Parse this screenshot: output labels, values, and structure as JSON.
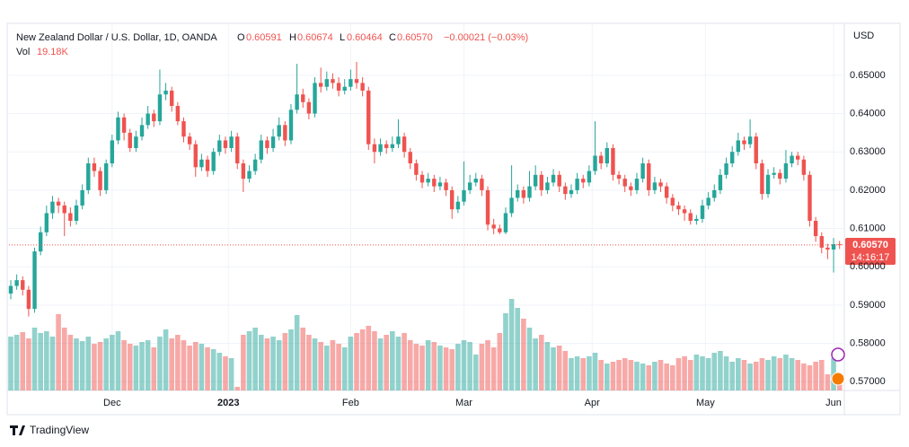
{
  "chart_data": {
    "type": "candlestick",
    "header": {
      "symbol": "New Zealand Dollar / U.S. Dollar, 1D, OANDA",
      "o": "O",
      "open": "0.60591",
      "h": "H",
      "high": "0.60674",
      "l": "L",
      "low": "0.60464",
      "c": "C",
      "close": "0.60570",
      "change": "−0.00021 (−0.03%)",
      "vol": "Vol",
      "volume": "19.18K"
    },
    "currency": "USD",
    "countdown": "14:16:17",
    "brand": "TradingView",
    "up_color": "#26a69a",
    "down_color": "#ef5350",
    "ylim": [
      0.5677,
      0.6631
    ],
    "yticks": [
      {
        "value": 0.57,
        "label": "0.57000"
      },
      {
        "value": 0.58,
        "label": "0.58000"
      },
      {
        "value": 0.59,
        "label": "0.59000"
      },
      {
        "value": 0.6,
        "label": "0.60000"
      },
      {
        "value": 0.61,
        "label": "0.61000"
      },
      {
        "value": 0.62,
        "label": "0.62000"
      },
      {
        "value": 0.63,
        "label": "0.63000"
      },
      {
        "value": 0.64,
        "label": "0.64000"
      },
      {
        "value": 0.65,
        "label": "0.65000"
      }
    ],
    "xlim": [
      -0.3,
      139.8
    ],
    "xticks": [
      {
        "value": 17,
        "label": "Dec"
      },
      {
        "value": 36.5,
        "label": "2023"
      },
      {
        "value": 57,
        "label": "Feb"
      },
      {
        "value": 76,
        "label": "Mar"
      },
      {
        "value": 97.5,
        "label": "Apr"
      },
      {
        "value": 116.5,
        "label": "May"
      },
      {
        "value": 138,
        "label": "Jun"
      }
    ],
    "volume_lim": [
      0,
      110000
    ],
    "candles": [
      [
        0.593,
        0.5965,
        0.5915,
        0.595
      ],
      [
        0.595,
        0.598,
        0.594,
        0.5965
      ],
      [
        0.5965,
        0.5975,
        0.5925,
        0.594
      ],
      [
        0.594,
        0.595,
        0.587,
        0.589
      ],
      [
        0.589,
        0.605,
        0.588,
        0.604
      ],
      [
        0.604,
        0.6105,
        0.603,
        0.609
      ],
      [
        0.609,
        0.616,
        0.608,
        0.614
      ],
      [
        0.614,
        0.6185,
        0.6125,
        0.617
      ],
      [
        0.617,
        0.618,
        0.614,
        0.616
      ],
      [
        0.616,
        0.617,
        0.608,
        0.614
      ],
      [
        0.614,
        0.6155,
        0.6105,
        0.612
      ],
      [
        0.612,
        0.6175,
        0.611,
        0.616
      ],
      [
        0.616,
        0.6215,
        0.615,
        0.62
      ],
      [
        0.62,
        0.6285,
        0.619,
        0.627
      ],
      [
        0.627,
        0.6285,
        0.6235,
        0.625
      ],
      [
        0.625,
        0.626,
        0.6185,
        0.62
      ],
      [
        0.62,
        0.628,
        0.619,
        0.627
      ],
      [
        0.627,
        0.6345,
        0.626,
        0.633
      ],
      [
        0.633,
        0.6405,
        0.632,
        0.639
      ],
      [
        0.639,
        0.64,
        0.633,
        0.635
      ],
      [
        0.635,
        0.636,
        0.63,
        0.631
      ],
      [
        0.631,
        0.6355,
        0.63,
        0.634
      ],
      [
        0.634,
        0.639,
        0.633,
        0.637
      ],
      [
        0.637,
        0.642,
        0.636,
        0.64
      ],
      [
        0.64,
        0.641,
        0.6365,
        0.638
      ],
      [
        0.638,
        0.6515,
        0.637,
        0.645
      ],
      [
        0.645,
        0.648,
        0.6435,
        0.646
      ],
      [
        0.646,
        0.647,
        0.6405,
        0.642
      ],
      [
        0.642,
        0.643,
        0.637,
        0.638
      ],
      [
        0.638,
        0.639,
        0.6325,
        0.634
      ],
      [
        0.634,
        0.635,
        0.6305,
        0.632
      ],
      [
        0.632,
        0.633,
        0.6235,
        0.626
      ],
      [
        0.626,
        0.6295,
        0.625,
        0.628
      ],
      [
        0.628,
        0.629,
        0.6235,
        0.625
      ],
      [
        0.625,
        0.631,
        0.624,
        0.63
      ],
      [
        0.63,
        0.6345,
        0.629,
        0.633
      ],
      [
        0.633,
        0.634,
        0.6295,
        0.631
      ],
      [
        0.631,
        0.6355,
        0.63,
        0.634
      ],
      [
        0.634,
        0.635,
        0.6255,
        0.627
      ],
      [
        0.627,
        0.628,
        0.6195,
        0.623
      ],
      [
        0.623,
        0.6265,
        0.622,
        0.625
      ],
      [
        0.625,
        0.6295,
        0.624,
        0.628
      ],
      [
        0.628,
        0.6345,
        0.627,
        0.633
      ],
      [
        0.633,
        0.634,
        0.6295,
        0.631
      ],
      [
        0.631,
        0.636,
        0.63,
        0.634
      ],
      [
        0.634,
        0.639,
        0.633,
        0.637
      ],
      [
        0.637,
        0.638,
        0.6315,
        0.633
      ],
      [
        0.633,
        0.6425,
        0.632,
        0.641
      ],
      [
        0.641,
        0.653,
        0.64,
        0.645
      ],
      [
        0.645,
        0.6465,
        0.6415,
        0.643
      ],
      [
        0.643,
        0.644,
        0.6385,
        0.64
      ],
      [
        0.64,
        0.6495,
        0.639,
        0.648
      ],
      [
        0.648,
        0.652,
        0.6455,
        0.647
      ],
      [
        0.647,
        0.651,
        0.646,
        0.649
      ],
      [
        0.649,
        0.6505,
        0.6465,
        0.648
      ],
      [
        0.648,
        0.6495,
        0.6445,
        0.646
      ],
      [
        0.646,
        0.649,
        0.645,
        0.647
      ],
      [
        0.647,
        0.6515,
        0.646,
        0.649
      ],
      [
        0.649,
        0.6535,
        0.6465,
        0.648
      ],
      [
        0.648,
        0.6495,
        0.6445,
        0.646
      ],
      [
        0.646,
        0.647,
        0.6305,
        0.632
      ],
      [
        0.632,
        0.6335,
        0.627,
        0.63
      ],
      [
        0.63,
        0.6335,
        0.629,
        0.632
      ],
      [
        0.632,
        0.633,
        0.6295,
        0.631
      ],
      [
        0.631,
        0.634,
        0.63,
        0.632
      ],
      [
        0.632,
        0.6385,
        0.631,
        0.634
      ],
      [
        0.634,
        0.635,
        0.6285,
        0.63
      ],
      [
        0.63,
        0.631,
        0.6255,
        0.627
      ],
      [
        0.627,
        0.628,
        0.6225,
        0.624
      ],
      [
        0.624,
        0.625,
        0.6205,
        0.622
      ],
      [
        0.622,
        0.6245,
        0.621,
        0.623
      ],
      [
        0.623,
        0.624,
        0.6195,
        0.621
      ],
      [
        0.621,
        0.6235,
        0.62,
        0.622
      ],
      [
        0.622,
        0.623,
        0.6185,
        0.62
      ],
      [
        0.62,
        0.621,
        0.6125,
        0.615
      ],
      [
        0.615,
        0.6185,
        0.614,
        0.617
      ],
      [
        0.617,
        0.6275,
        0.616,
        0.62
      ],
      [
        0.62,
        0.624,
        0.619,
        0.622
      ],
      [
        0.622,
        0.6245,
        0.621,
        0.623
      ],
      [
        0.623,
        0.624,
        0.6185,
        0.62
      ],
      [
        0.62,
        0.621,
        0.6095,
        0.611
      ],
      [
        0.611,
        0.6125,
        0.6085,
        0.61
      ],
      [
        0.61,
        0.611,
        0.6085,
        0.609
      ],
      [
        0.609,
        0.6155,
        0.6085,
        0.614
      ],
      [
        0.614,
        0.6265,
        0.613,
        0.618
      ],
      [
        0.618,
        0.6215,
        0.617,
        0.62
      ],
      [
        0.62,
        0.621,
        0.6165,
        0.618
      ],
      [
        0.618,
        0.625,
        0.617,
        0.621
      ],
      [
        0.621,
        0.6265,
        0.62,
        0.624
      ],
      [
        0.624,
        0.625,
        0.6185,
        0.62
      ],
      [
        0.62,
        0.6235,
        0.619,
        0.622
      ],
      [
        0.622,
        0.6255,
        0.621,
        0.624
      ],
      [
        0.624,
        0.625,
        0.6195,
        0.621
      ],
      [
        0.621,
        0.622,
        0.6175,
        0.619
      ],
      [
        0.619,
        0.6215,
        0.618,
        0.62
      ],
      [
        0.62,
        0.6245,
        0.619,
        0.623
      ],
      [
        0.623,
        0.624,
        0.6205,
        0.622
      ],
      [
        0.622,
        0.6265,
        0.621,
        0.625
      ],
      [
        0.625,
        0.638,
        0.624,
        0.629
      ],
      [
        0.629,
        0.63,
        0.6255,
        0.627
      ],
      [
        0.627,
        0.6325,
        0.626,
        0.631
      ],
      [
        0.631,
        0.632,
        0.6225,
        0.624
      ],
      [
        0.624,
        0.625,
        0.6215,
        0.623
      ],
      [
        0.623,
        0.624,
        0.6195,
        0.621
      ],
      [
        0.621,
        0.622,
        0.6185,
        0.62
      ],
      [
        0.62,
        0.6245,
        0.619,
        0.623
      ],
      [
        0.623,
        0.6285,
        0.622,
        0.627
      ],
      [
        0.627,
        0.628,
        0.6185,
        0.62
      ],
      [
        0.62,
        0.6235,
        0.619,
        0.622
      ],
      [
        0.622,
        0.623,
        0.6195,
        0.621
      ],
      [
        0.621,
        0.622,
        0.6165,
        0.618
      ],
      [
        0.618,
        0.619,
        0.6145,
        0.616
      ],
      [
        0.616,
        0.617,
        0.6135,
        0.615
      ],
      [
        0.615,
        0.616,
        0.612,
        0.614
      ],
      [
        0.614,
        0.615,
        0.611,
        0.612
      ],
      [
        0.612,
        0.6135,
        0.611,
        0.6125
      ],
      [
        0.6125,
        0.6175,
        0.6115,
        0.616
      ],
      [
        0.616,
        0.6195,
        0.615,
        0.618
      ],
      [
        0.618,
        0.6215,
        0.617,
        0.62
      ],
      [
        0.62,
        0.6255,
        0.619,
        0.624
      ],
      [
        0.624,
        0.6285,
        0.623,
        0.627
      ],
      [
        0.627,
        0.6315,
        0.626,
        0.63
      ],
      [
        0.63,
        0.635,
        0.629,
        0.633
      ],
      [
        0.633,
        0.634,
        0.6305,
        0.632
      ],
      [
        0.632,
        0.6385,
        0.631,
        0.634
      ],
      [
        0.634,
        0.635,
        0.6255,
        0.627
      ],
      [
        0.627,
        0.628,
        0.6175,
        0.619
      ],
      [
        0.619,
        0.6255,
        0.618,
        0.624
      ],
      [
        0.624,
        0.626,
        0.623,
        0.6245
      ],
      [
        0.6245,
        0.6255,
        0.6215,
        0.623
      ],
      [
        0.623,
        0.6305,
        0.622,
        0.627
      ],
      [
        0.627,
        0.63,
        0.626,
        0.629
      ],
      [
        0.629,
        0.63,
        0.6265,
        0.628
      ],
      [
        0.628,
        0.629,
        0.6225,
        0.624
      ],
      [
        0.624,
        0.625,
        0.6105,
        0.612
      ],
      [
        0.612,
        0.613,
        0.6065,
        0.608
      ],
      [
        0.608,
        0.609,
        0.6035,
        0.605
      ],
      [
        0.605,
        0.606,
        0.602,
        0.6045
      ],
      [
        0.6045,
        0.6075,
        0.5985,
        0.6059
      ],
      [
        0.60591,
        0.60674,
        0.60464,
        0.6057
      ]
    ],
    "volume": [
      60000,
      62000,
      65000,
      58000,
      70000,
      64000,
      66000,
      60000,
      85000,
      70000,
      62000,
      58000,
      55000,
      60000,
      52000,
      54000,
      58000,
      62000,
      66000,
      56000,
      52000,
      50000,
      54000,
      56000,
      48000,
      60000,
      68000,
      58000,
      62000,
      56000,
      50000,
      54000,
      52000,
      48000,
      46000,
      42000,
      38000,
      36000,
      4000,
      62000,
      66000,
      70000,
      62000,
      58000,
      60000,
      56000,
      64000,
      68000,
      84000,
      70000,
      62000,
      58000,
      54000,
      50000,
      56000,
      52000,
      48000,
      60000,
      64000,
      68000,
      72000,
      66000,
      58000,
      62000,
      66000,
      60000,
      64000,
      56000,
      52000,
      50000,
      56000,
      54000,
      50000,
      48000,
      46000,
      52000,
      56000,
      54000,
      40000,
      52000,
      56000,
      48000,
      64000,
      86000,
      102000,
      92000,
      80000,
      70000,
      58000,
      62000,
      54000,
      48000,
      50000,
      44000,
      36000,
      38000,
      36000,
      38000,
      42000,
      34000,
      30000,
      32000,
      34000,
      36000,
      34000,
      32000,
      30000,
      28000,
      32000,
      34000,
      30000,
      28000,
      36000,
      38000,
      34000,
      40000,
      38000,
      36000,
      42000,
      44000,
      38000,
      32000,
      36000,
      34000,
      30000,
      32000,
      36000,
      34000,
      38000,
      36000,
      40000,
      36000,
      34000,
      30000,
      28000,
      32000,
      34000,
      18000,
      36000,
      19180
    ]
  }
}
